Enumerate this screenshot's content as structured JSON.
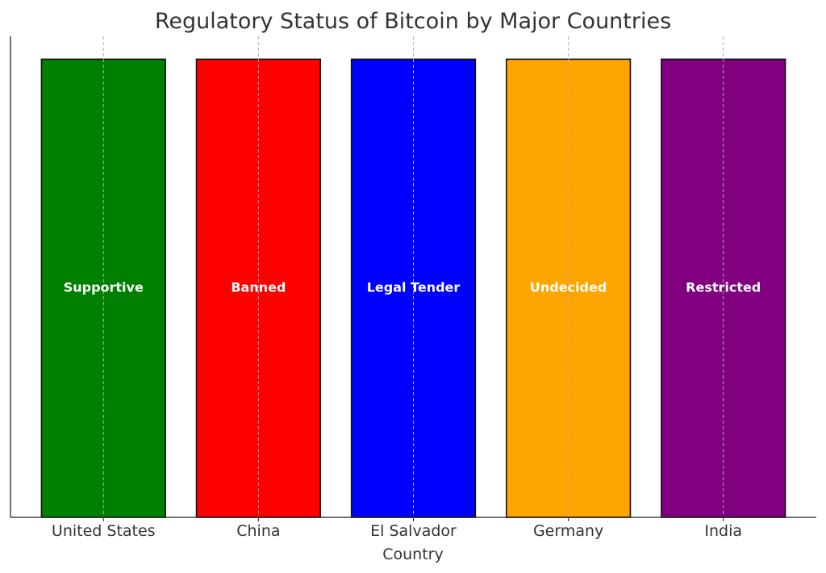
{
  "chart_data": {
    "type": "bar",
    "title": "Regulatory Status of Bitcoin by Major Countries",
    "xlabel": "Country",
    "ylabel": "",
    "categories": [
      "United States",
      "China",
      "El Salvador",
      "Germany",
      "India"
    ],
    "values": [
      1,
      1,
      1,
      1,
      1
    ],
    "bar_labels": [
      "Supportive",
      "Banned",
      "Legal Tender",
      "Undecided",
      "Restricted"
    ],
    "colors": [
      "#008000",
      "#ff0000",
      "#0000ff",
      "#ffa500",
      "#800080"
    ],
    "ylim": [
      0,
      1.05
    ],
    "y_ticks_visible": false,
    "grid": "x-dashed",
    "legend": "none"
  }
}
